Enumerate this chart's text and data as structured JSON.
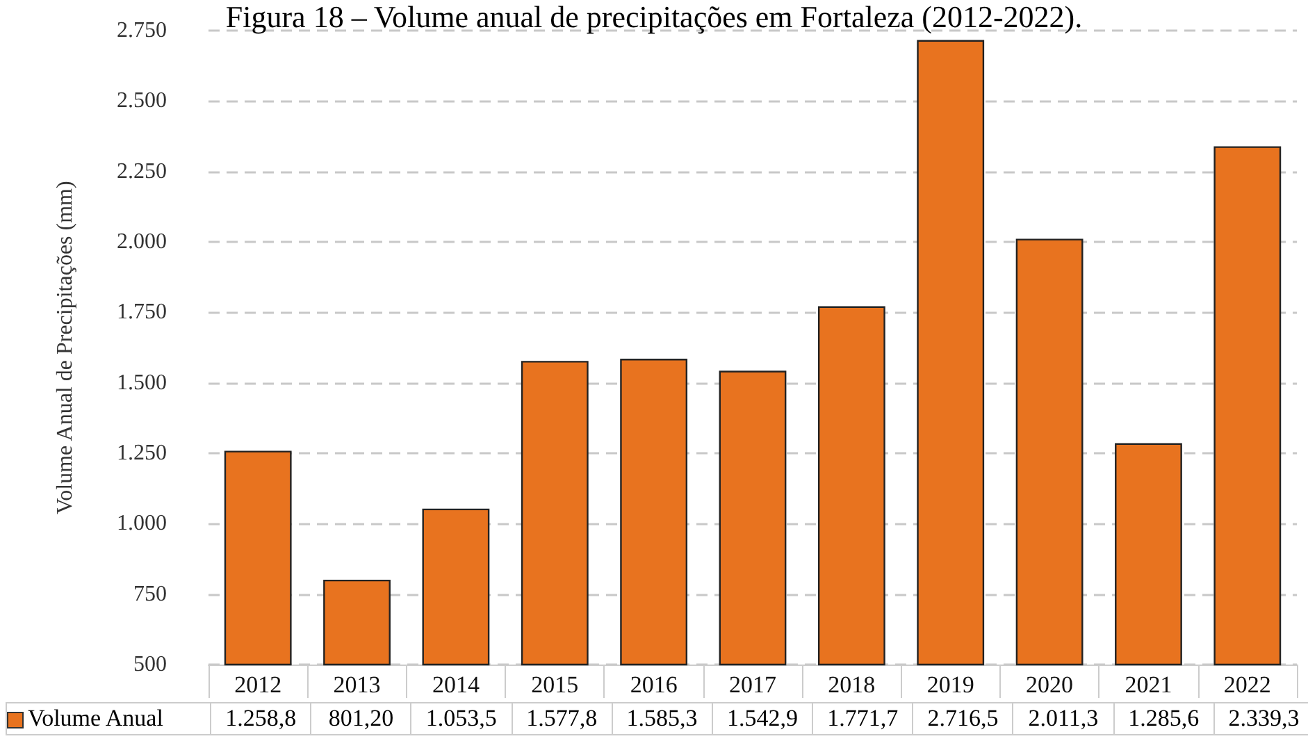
{
  "chart_data": {
    "type": "bar",
    "title": "Figura 18 – Volume anual de precipitações em Fortaleza (2012-2022).",
    "ylabel": "Volume Anual de Precipitações (mm)",
    "categories": [
      "2012",
      "2013",
      "2014",
      "2015",
      "2016",
      "2017",
      "2018",
      "2019",
      "2020",
      "2021",
      "2022"
    ],
    "series": [
      {
        "name": "Volume Anual",
        "color": "#e8731f",
        "values": [
          1258.8,
          801.2,
          1053.5,
          1577.8,
          1585.3,
          1542.9,
          1771.7,
          2716.5,
          2011.3,
          1285.6,
          2339.3
        ],
        "value_labels": [
          "1.258,8",
          "801,20",
          "1.053,5",
          "1.577,8",
          "1.585,3",
          "1.542,9",
          "1.771,7",
          "2.716,5",
          "2.011,3",
          "1.285,6",
          "2.339,3"
        ]
      }
    ],
    "ylim": [
      500,
      2750
    ],
    "yticks": [
      {
        "value": 500,
        "label": "500"
      },
      {
        "value": 750,
        "label": "750"
      },
      {
        "value": 1000,
        "label": "1.000"
      },
      {
        "value": 1250,
        "label": "1.250"
      },
      {
        "value": 1500,
        "label": "1.500"
      },
      {
        "value": 1750,
        "label": "1.750"
      },
      {
        "value": 2000,
        "label": "2.000"
      },
      {
        "value": 2250,
        "label": "2.250"
      },
      {
        "value": 2500,
        "label": "2.500"
      },
      {
        "value": 2750,
        "label": "2.750"
      }
    ],
    "grid": "y",
    "legend": "bottom left"
  }
}
